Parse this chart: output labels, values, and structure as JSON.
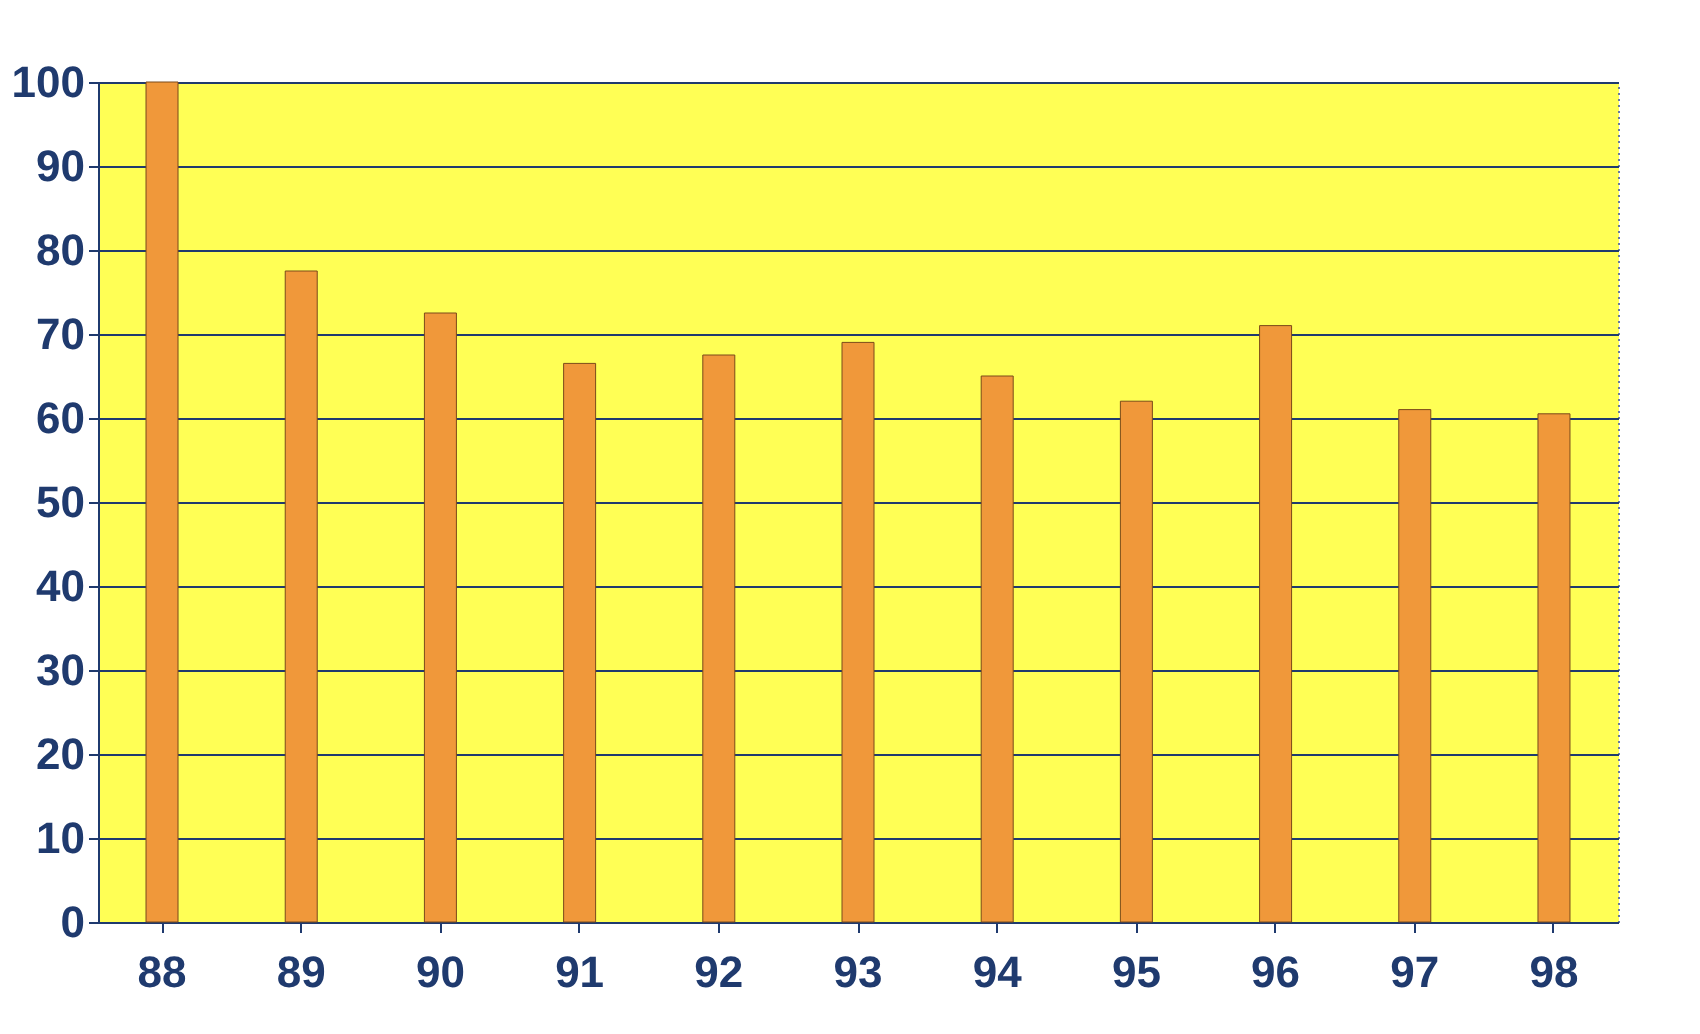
{
  "chart_data": {
    "type": "bar",
    "categories": [
      "88",
      "89",
      "90",
      "91",
      "92",
      "93",
      "94",
      "95",
      "96",
      "97",
      "98"
    ],
    "values": [
      100,
      77.5,
      72.5,
      66.5,
      67.5,
      69,
      65,
      62,
      71,
      61,
      60.5
    ],
    "color": "#f0983a",
    "ylim": [
      0,
      100
    ],
    "yticks": [
      0,
      10,
      20,
      30,
      40,
      50,
      60,
      70,
      80,
      90,
      100
    ],
    "grid": "y"
  }
}
